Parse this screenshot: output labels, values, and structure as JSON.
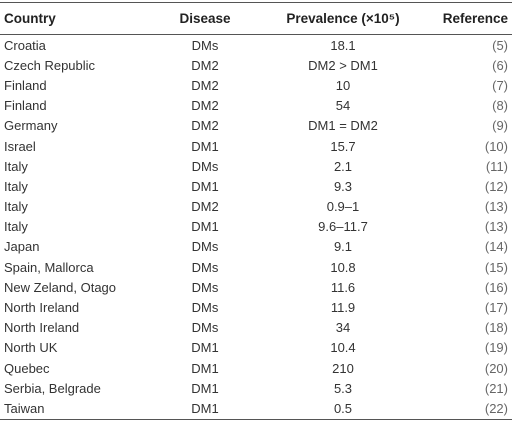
{
  "table": {
    "header": [
      "Country",
      "Disease",
      "Prevalence (×10⁵)",
      "Reference"
    ],
    "rows": [
      [
        "Croatia",
        "DMs",
        "18.1",
        "(5)"
      ],
      [
        "Czech Republic",
        "DM2",
        "DM2 > DM1",
        "(6)"
      ],
      [
        "Finland",
        "DM2",
        "10",
        "(7)"
      ],
      [
        "Finland",
        "DM2",
        "54",
        "(8)"
      ],
      [
        "Germany",
        "DM2",
        "DM1 = DM2",
        "(9)"
      ],
      [
        "Israel",
        "DM1",
        "15.7",
        "(10)"
      ],
      [
        "Italy",
        "DMs",
        "2.1",
        "(11)"
      ],
      [
        "Italy",
        "DM1",
        "9.3",
        "(12)"
      ],
      [
        "Italy",
        "DM2",
        "0.9–1",
        "(13)"
      ],
      [
        "Italy",
        "DM1",
        "9.6–11.7",
        "(13)"
      ],
      [
        "Japan",
        "DMs",
        "9.1",
        "(14)"
      ],
      [
        "Spain, Mallorca",
        "DMs",
        "10.8",
        "(15)"
      ],
      [
        "New Zeland, Otago",
        "DMs",
        "11.6",
        "(16)"
      ],
      [
        "North Ireland",
        "DMs",
        "11.9",
        "(17)"
      ],
      [
        "North Ireland",
        "DMs",
        "34",
        "(18)"
      ],
      [
        "North UK",
        "DM1",
        "10.4",
        "(19)"
      ],
      [
        "Quebec",
        "DM1",
        "210",
        "(20)"
      ],
      [
        "Serbia, Belgrade",
        "DM1",
        "5.3",
        "(21)"
      ],
      [
        "Taiwan",
        "DM1",
        "0.5",
        "(22)"
      ]
    ]
  }
}
